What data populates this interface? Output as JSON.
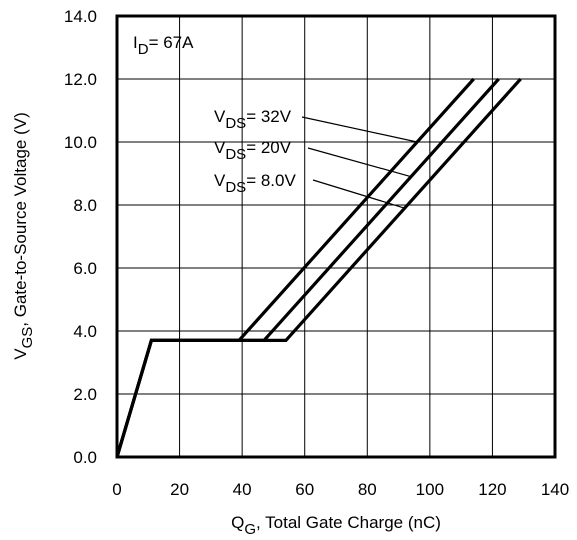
{
  "chart_data": {
    "type": "line",
    "xlim": [
      0,
      140
    ],
    "ylim": [
      0,
      14
    ],
    "xticks": [
      "0",
      "20",
      "40",
      "60",
      "80",
      "100",
      "120",
      "140"
    ],
    "yticks": [
      "0.0",
      "2.0",
      "4.0",
      "6.0",
      "8.0",
      "10.0",
      "12.0",
      "14.0"
    ],
    "xlabel": {
      "main": "Q",
      "sub": "G",
      "rest": ",  Total Gate Charge (nC)"
    },
    "ylabel": {
      "main": "V",
      "sub": "GS",
      "rest": ", Gate-to-Source Voltage (V)"
    },
    "grid": true,
    "annotation": {
      "main": "I",
      "sub": "D",
      "rest": "= 67A"
    },
    "series": [
      {
        "name": "VDS= 32V",
        "label": {
          "main": "V",
          "sub": "DS",
          "rest": "= 32V"
        },
        "x": [
          0,
          11,
          39,
          114
        ],
        "y": [
          0,
          3.7,
          3.7,
          12
        ]
      },
      {
        "name": "VDS= 20V",
        "label": {
          "main": "V",
          "sub": "DS",
          "rest": "= 20V"
        },
        "x": [
          0,
          11,
          47,
          122
        ],
        "y": [
          0,
          3.7,
          3.7,
          12
        ]
      },
      {
        "name": "VDS= 8.0V",
        "label": {
          "main": "V",
          "sub": "DS",
          "rest": "= 8.0V"
        },
        "x": [
          0,
          11,
          54,
          129
        ],
        "y": [
          0,
          3.7,
          3.7,
          12
        ]
      }
    ]
  }
}
